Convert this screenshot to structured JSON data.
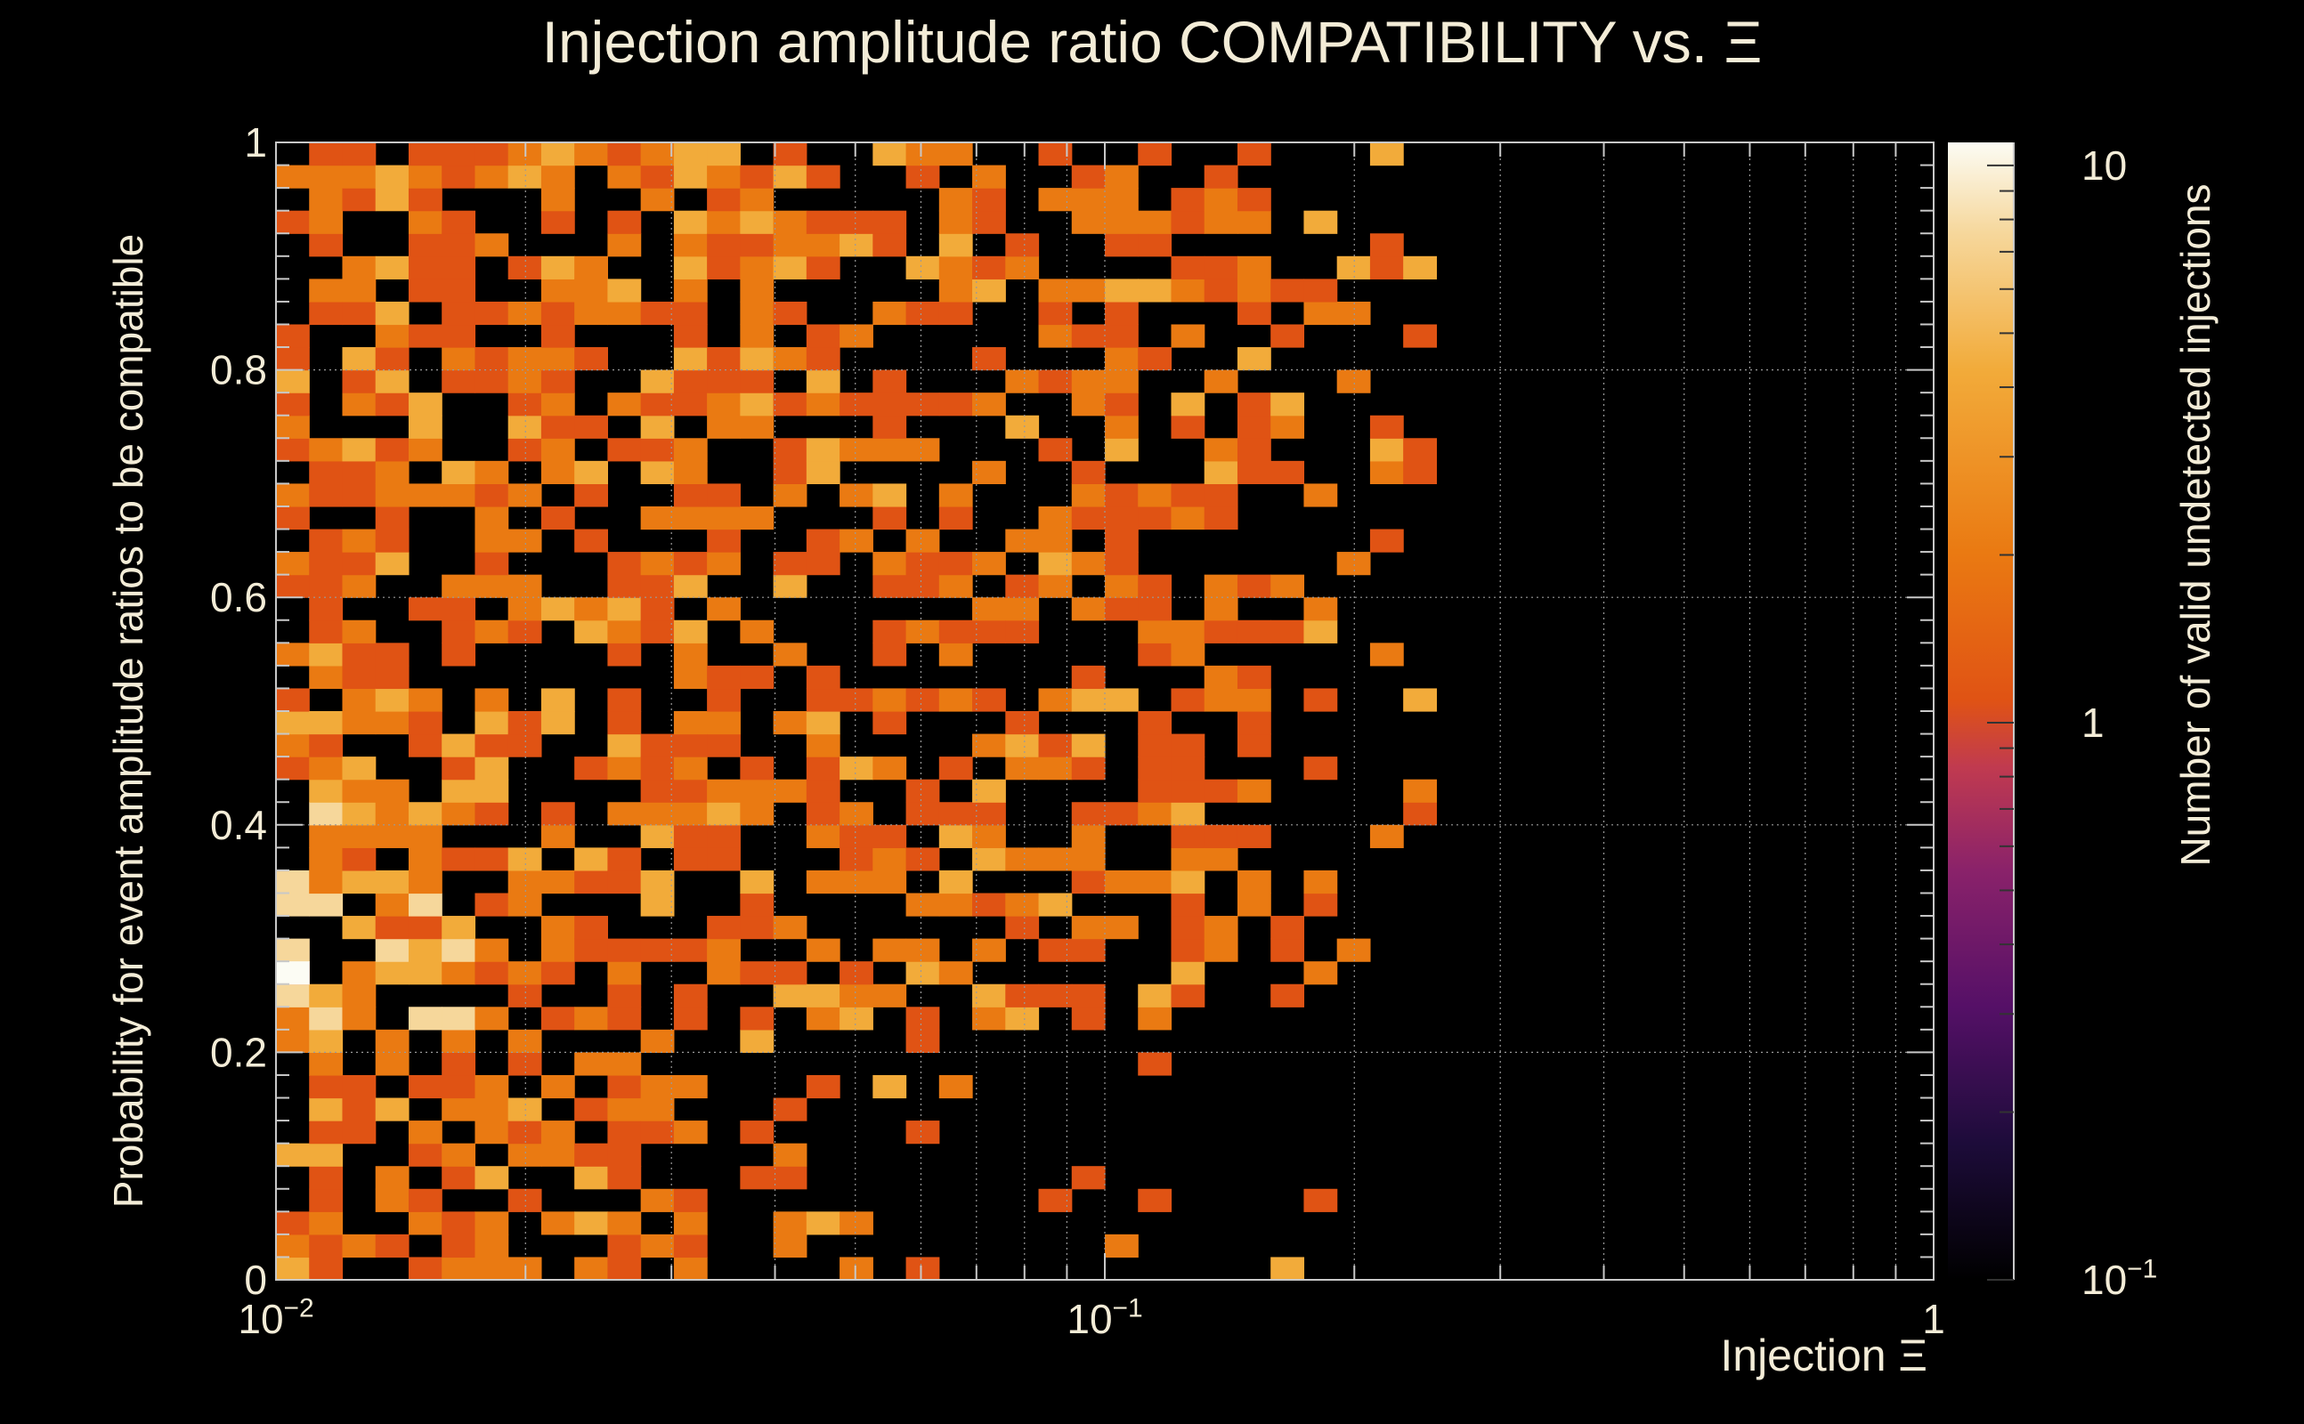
{
  "chart_data": {
    "type": "heatmap",
    "title": "Injection amplitude ratio COMPATIBILITY vs.  Ξ",
    "xlabel": "Injection Ξ",
    "ylabel": "Probability for event amplitude ratios to be compatible",
    "zlabel": "Number of valid undetected injections",
    "x_scale": "log",
    "xlim": [
      0.01,
      1
    ],
    "ylim": [
      0,
      1
    ],
    "zlim": [
      0.1,
      11
    ],
    "z_scale": "log",
    "x_bins": 50,
    "y_bins": 50,
    "x_ticks": [
      {
        "value": 0.01,
        "base": "10",
        "exp": "−2"
      },
      {
        "value": 0.1,
        "base": "10",
        "exp": "−1"
      },
      {
        "value": 1,
        "base": "1",
        "exp": ""
      }
    ],
    "y_ticks": [
      "0",
      "0.2",
      "0.4",
      "0.6",
      "0.8",
      "1"
    ],
    "z_ticks": [
      {
        "value": 0.1,
        "base": "10",
        "exp": "−1"
      },
      {
        "value": 1,
        "base": "1",
        "exp": ""
      },
      {
        "value": 10,
        "base": "10",
        "exp": ""
      }
    ],
    "grid": true,
    "palette": [
      "#000000",
      "#1d0c3a",
      "#551067",
      "#8a226a",
      "#c03a50",
      "#e05314",
      "#ea7a12",
      "#f2ab3a",
      "#f6d79b",
      "#fcfcf4"
    ],
    "filled_region": {
      "x_range": [
        0.01,
        0.25
      ],
      "y_range": [
        0,
        1
      ]
    },
    "hot_spot": {
      "x": 0.0103,
      "y": 0.27,
      "count": 10
    }
  }
}
